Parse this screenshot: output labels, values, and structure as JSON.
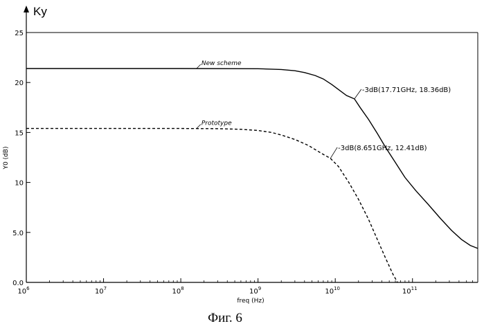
{
  "chart_data": {
    "type": "line",
    "corner_label": "Ky",
    "caption": "Фиг. 6",
    "xlabel": "freq (Hz)",
    "ylabel": "Y0 (dB)",
    "xscale": "log",
    "xlim": [
      1000000,
      700000000000
    ],
    "ylim": [
      0,
      25
    ],
    "xticks": [
      {
        "value": 1000000,
        "base": "10",
        "exp": "6"
      },
      {
        "value": 10000000,
        "base": "10",
        "exp": "7"
      },
      {
        "value": 100000000,
        "base": "10",
        "exp": "8"
      },
      {
        "value": 1000000000,
        "base": "10",
        "exp": "9"
      },
      {
        "value": 10000000000,
        "base": "10",
        "exp": "10"
      },
      {
        "value": 100000000000,
        "base": "10",
        "exp": "11"
      }
    ],
    "yticks": [
      {
        "value": 0,
        "label": "0.0"
      },
      {
        "value": 5,
        "label": "5.0"
      },
      {
        "value": 10,
        "label": "10"
      },
      {
        "value": 15,
        "label": "15"
      },
      {
        "value": 20,
        "label": "20"
      },
      {
        "value": 25,
        "label": "25"
      }
    ],
    "grid": false,
    "series": [
      {
        "name": "New scheme",
        "style": "solid",
        "color": "#000000",
        "points": [
          [
            1000000,
            21.4
          ],
          [
            100000000,
            21.4
          ],
          [
            1000000000,
            21.38
          ],
          [
            2000000000,
            21.3
          ],
          [
            3000000000,
            21.18
          ],
          [
            4000000000,
            21.0
          ],
          [
            5500000000,
            20.7
          ],
          [
            7000000000,
            20.35
          ],
          [
            9000000000,
            19.8
          ],
          [
            11000000000,
            19.3
          ],
          [
            14000000000,
            18.7
          ],
          [
            17710000000,
            18.36
          ],
          [
            21000000000,
            17.5
          ],
          [
            27000000000,
            16.3
          ],
          [
            35000000000,
            14.9
          ],
          [
            45000000000,
            13.5
          ],
          [
            60000000000,
            12.0
          ],
          [
            80000000000,
            10.5
          ],
          [
            110000000000,
            9.2
          ],
          [
            160000000000,
            7.8
          ],
          [
            230000000000,
            6.4
          ],
          [
            320000000000,
            5.2
          ],
          [
            430000000000,
            4.3
          ],
          [
            560000000000,
            3.7
          ],
          [
            700000000000,
            3.4
          ]
        ]
      },
      {
        "name": "Prototype",
        "style": "dashed",
        "color": "#000000",
        "points": [
          [
            1000000,
            15.4
          ],
          [
            100000000,
            15.4
          ],
          [
            300000000,
            15.38
          ],
          [
            600000000,
            15.32
          ],
          [
            1000000000,
            15.2
          ],
          [
            1500000000,
            15.0
          ],
          [
            2000000000,
            14.75
          ],
          [
            3000000000,
            14.3
          ],
          [
            4500000000,
            13.7
          ],
          [
            6500000000,
            12.95
          ],
          [
            8651000000,
            12.41
          ],
          [
            11000000000,
            11.6
          ],
          [
            15000000000,
            10.0
          ],
          [
            20000000000,
            8.3
          ],
          [
            27000000000,
            6.3
          ],
          [
            35000000000,
            4.3
          ],
          [
            45000000000,
            2.4
          ],
          [
            56000000000,
            0.8
          ],
          [
            64000000000,
            0
          ]
        ]
      }
    ],
    "annotations": [
      {
        "series": 0,
        "x": 17710000000,
        "y": 18.36,
        "text": "-3dB(17.71GHz, 18.36dB)",
        "dx": 18,
        "dy": -14
      },
      {
        "series": 1,
        "x": 8651000000,
        "y": 12.41,
        "text": "-3dB(8.651GHz, 12.41dB)",
        "dx": 18,
        "dy": -16
      }
    ],
    "series_labels": [
      {
        "series": 0,
        "x": 160000000,
        "y": 21.4,
        "dx": 6,
        "dy": -6
      },
      {
        "series": 1,
        "x": 160000000,
        "y": 15.4,
        "dx": 6,
        "dy": -6
      }
    ]
  }
}
